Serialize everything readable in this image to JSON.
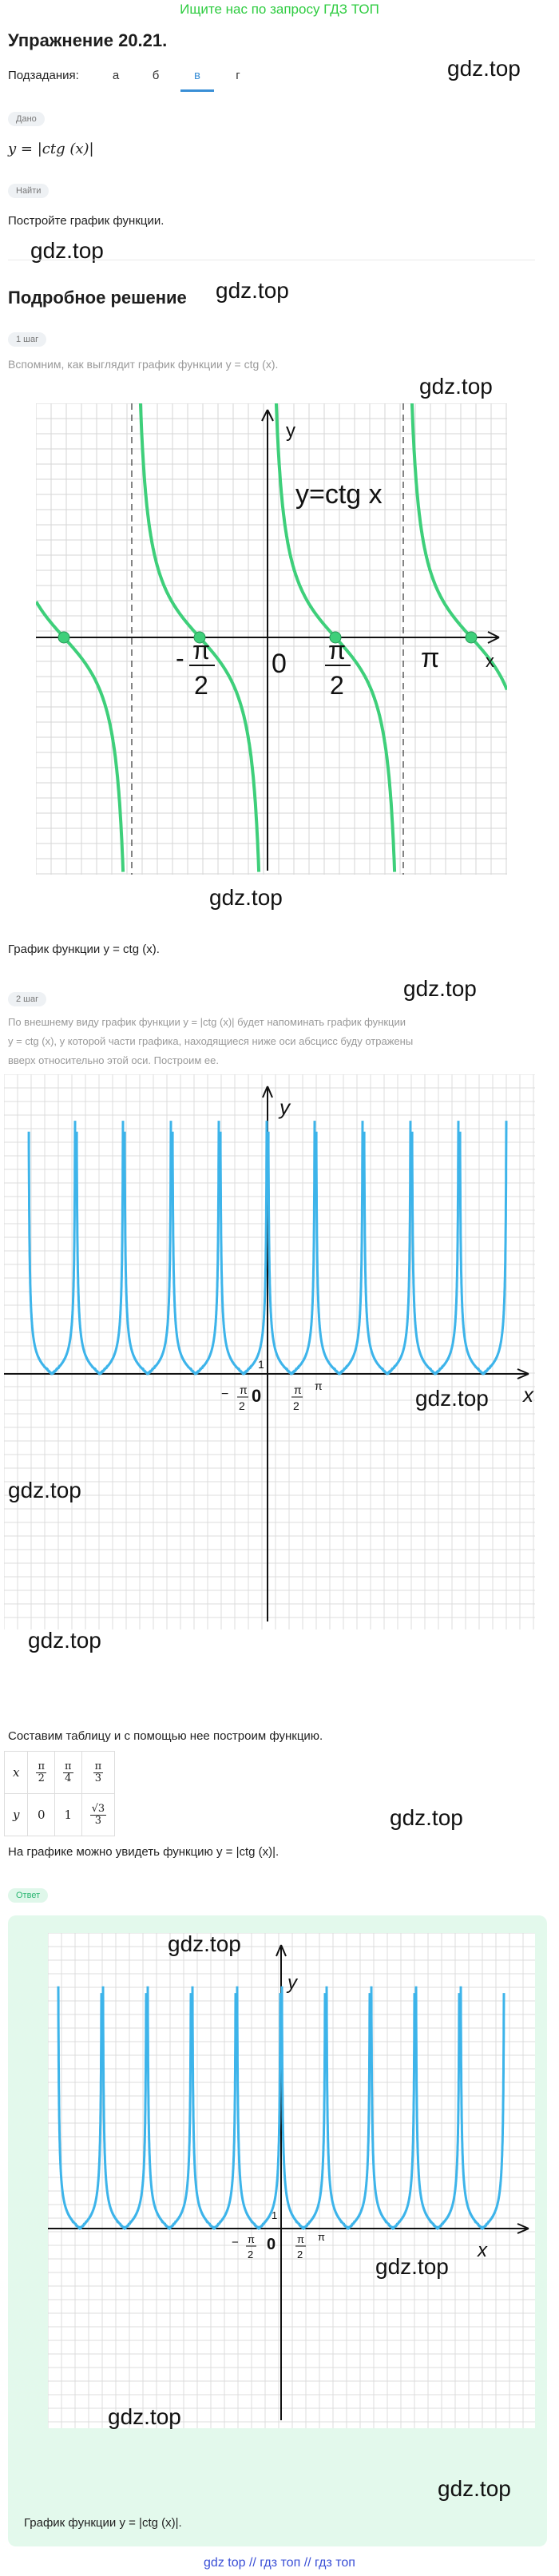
{
  "header": {
    "top_link": "Ищите нас по запросу ГДЗ ТОП",
    "title": "Упражнение 20.21.",
    "subtasks_label": "Подзадания:",
    "tabs": [
      "а",
      "б",
      "в",
      "г"
    ],
    "active_tab": "в"
  },
  "watermark": "gdz.top",
  "given": {
    "chip": "Дано",
    "formula": "y = |ctg (x)|"
  },
  "find": {
    "chip": "Найти",
    "text": "Постройте график функции."
  },
  "solution": {
    "heading": "Подробное решение",
    "step1_chip": "1 шаг",
    "step1_text": "Вспомним, как выглядит график функции y = ctg (x).",
    "graph1": {
      "y_axis": "y",
      "x_axis": "x",
      "curve_label": "y=ctg x",
      "origin": "0",
      "label_neg_half_pi": "- π/2",
      "label_half_pi": "π/2",
      "label_pi": "π"
    },
    "caption1": "График функции y = ctg (x).",
    "step2_chip": "2 шаг",
    "step2_text_1": "По внешнему виду график функции y = |ctg (x)| будет напоминать график функции",
    "step2_text_2": "y = ctg (x), у которой части графика, находящиеся ниже оси абсцисс буду отражены",
    "step2_text_3": "вверх относительно этой оси. Построим ее.",
    "graph2": {
      "y_axis": "y",
      "x_axis": "x",
      "origin": "0",
      "one": "1",
      "label_neg_half_pi": "− π/2",
      "label_half_pi": "π/2",
      "label_pi": "π"
    },
    "table_intro": "Составим таблицу и с помощью нее построим функцию.",
    "table": {
      "row_x": [
        "x",
        "π/2",
        "π/4",
        "π/3"
      ],
      "row_y": [
        "y",
        "0",
        "1",
        "√3/3"
      ]
    },
    "table_conclusion": "На графике можно увидеть функцию y = |ctg (x)|."
  },
  "answer": {
    "chip": "Ответ",
    "caption": "График функции y = |ctg (x)|."
  },
  "footer": "gdz top  //  гдз топ  //  гдз топ",
  "colors": {
    "accent_blue": "#3a8fd6",
    "graph1_curve": "#3ecf7a",
    "graph2_curve": "#3db4ea",
    "answer_bg": "#e3f9ec",
    "top_link": "#2ecc40"
  }
}
